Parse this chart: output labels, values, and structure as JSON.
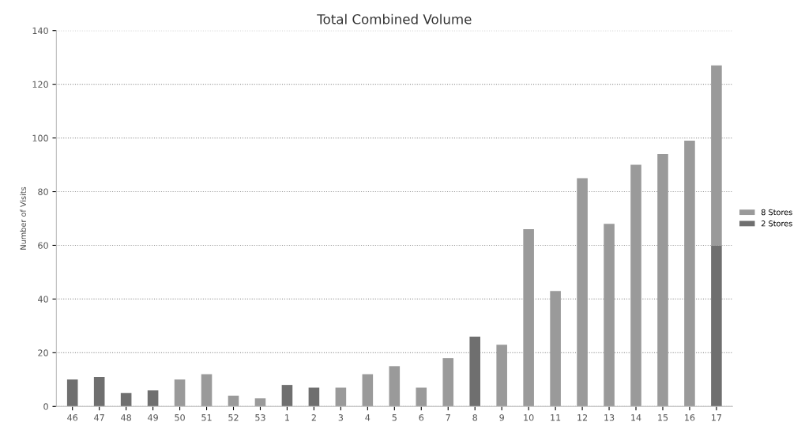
{
  "chart_data": {
    "type": "bar",
    "title": "Total Combined Volume",
    "ylabel": "Number of Visits",
    "categories": [
      "46",
      "47",
      "48",
      "49",
      "50",
      "51",
      "52",
      "53",
      "1",
      "2",
      "3",
      "4",
      "5",
      "6",
      "7",
      "8",
      "9",
      "10",
      "11",
      "12",
      "13",
      "14",
      "15",
      "16",
      "17"
    ],
    "stacked": true,
    "series": [
      {
        "name": "2 Stores",
        "color": "#6f6f6f",
        "values": [
          10,
          11,
          5,
          6,
          null,
          null,
          null,
          null,
          8,
          7,
          null,
          null,
          null,
          null,
          null,
          26,
          null,
          null,
          null,
          null,
          null,
          null,
          null,
          null,
          60
        ]
      },
      {
        "name": "8 Stores",
        "color": "#9a9a9a",
        "values": [
          null,
          null,
          null,
          null,
          10,
          12,
          4,
          3,
          null,
          null,
          7,
          12,
          15,
          7,
          18,
          null,
          23,
          66,
          43,
          85,
          68,
          90,
          94,
          99,
          67
        ]
      }
    ],
    "ylim": [
      0,
      140
    ],
    "yticks": [
      0,
      20,
      40,
      60,
      80,
      100,
      120,
      140
    ],
    "grid": "y",
    "legend": "right"
  }
}
